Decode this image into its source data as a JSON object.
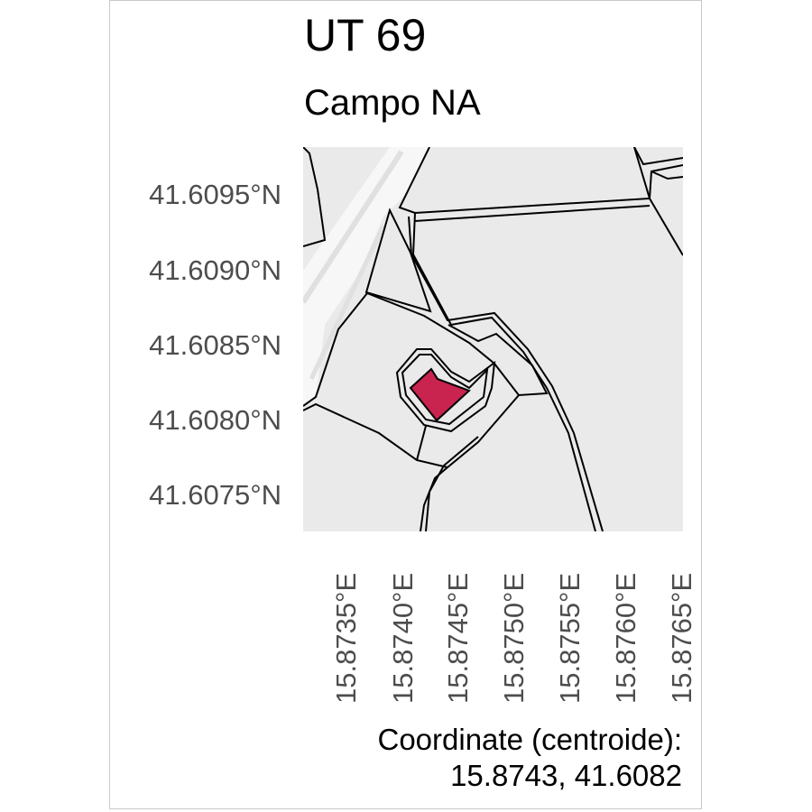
{
  "title": "UT 69",
  "subtitle": "Campo NA",
  "axes": {
    "lat_ticks": [
      "41.6095°N",
      "41.6090°N",
      "41.6085°N",
      "41.6080°N",
      "41.6075°N"
    ],
    "lon_ticks": [
      "15.8735°E",
      "15.8740°E",
      "15.8745°E",
      "15.8750°E",
      "15.8755°E",
      "15.8760°E",
      "15.8765°E"
    ]
  },
  "footer": {
    "line1": "Coordinate (centroide):",
    "line2": "15.8743, 41.6082"
  },
  "colors": {
    "highlight_parcel": "#c9234f",
    "land": "#eaeaea",
    "road": "#f7f7f7",
    "outline": "#000000"
  },
  "highlighted_parcel": {
    "centroid_lon": 15.8743,
    "centroid_lat": 41.6082
  }
}
